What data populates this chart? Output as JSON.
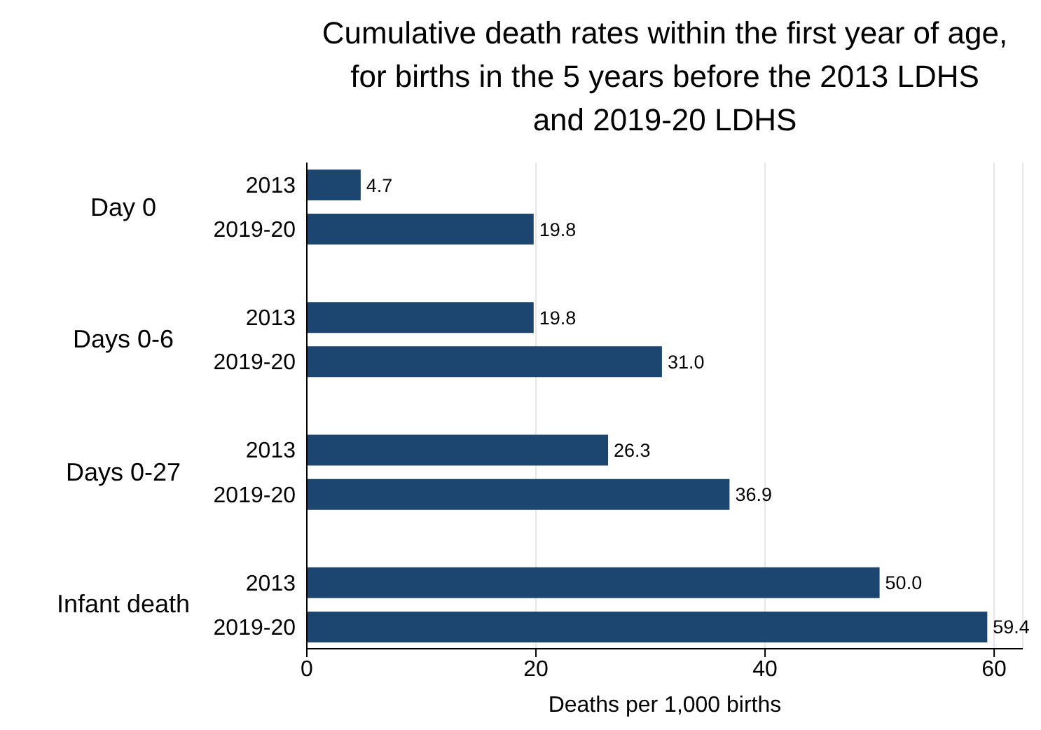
{
  "chart_data": {
    "type": "bar",
    "orientation": "horizontal",
    "title": "Cumulative death rates within the first year of age, for births in the 5 years before the 2013 LDHS and 2019-20 LDHS",
    "xlabel": "Deaths per 1,000 births",
    "categories": [
      "2013",
      "2019-20",
      null,
      "2013",
      "2019-20",
      null,
      "2013",
      "2019-20",
      null,
      "2013",
      "2019-20"
    ],
    "values": [
      4.7,
      19.8,
      null,
      19.8,
      31.0,
      null,
      26.3,
      36.9,
      null,
      50.0,
      59.4
    ],
    "value_labels": [
      "4.7",
      "19.8",
      null,
      "19.8",
      "31.0",
      null,
      "26.3",
      "36.9",
      null,
      "50.0",
      "59.4"
    ],
    "color": "#1c4670",
    "annotations": [
      "Day 0",
      "Days 0-6",
      "Days 0-27",
      "Infant death"
    ],
    "xlim": [
      0,
      62.5
    ],
    "xticks": [
      0,
      20,
      40,
      60
    ],
    "grid": "x"
  }
}
